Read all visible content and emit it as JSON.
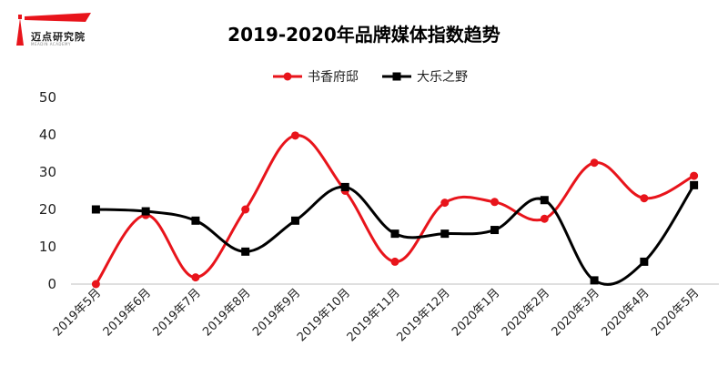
{
  "logo": {
    "brand_text": "迈点研究院",
    "sub_text": "MEADIN ACADEMY"
  },
  "chart_data": {
    "type": "line",
    "title": "2019-2020年品牌媒体指数趋势",
    "categories": [
      "2019年5月",
      "2019年6月",
      "2019年7月",
      "2019年8月",
      "2019年9月",
      "2019年10月",
      "2019年11月",
      "2019年12月",
      "2020年1月",
      "2020年2月",
      "2020年3月",
      "2020年4月",
      "2020年5月"
    ],
    "series": [
      {
        "name": "书香府邸",
        "color": "#e8141b",
        "marker": "circle",
        "values": [
          0,
          18.5,
          1.8,
          20,
          39.8,
          25,
          6,
          21.8,
          22,
          17.5,
          32.5,
          23,
          29
        ]
      },
      {
        "name": "大乐之野",
        "color": "#000000",
        "marker": "square",
        "values": [
          20,
          19.5,
          17,
          8.7,
          17,
          26,
          13.5,
          13.5,
          14.5,
          22.5,
          1,
          6,
          26.5
        ]
      }
    ],
    "ylim": [
      0,
      50
    ],
    "yticks": [
      0,
      10,
      20,
      30,
      40,
      50
    ],
    "grid": false,
    "legend": "top"
  }
}
